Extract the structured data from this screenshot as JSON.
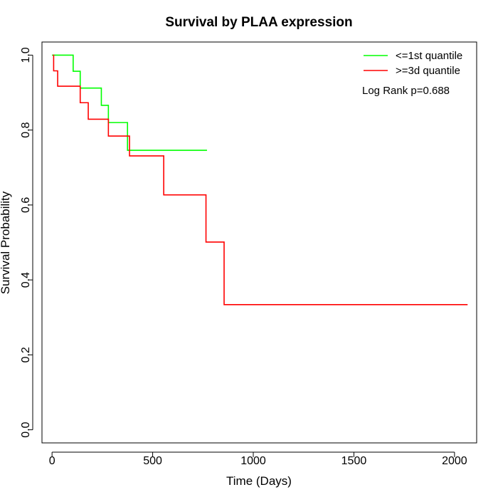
{
  "chart_data": {
    "type": "line",
    "title": "Survival by PLAA expression",
    "xlabel": "Time (Days)",
    "ylabel": "Survival Probability",
    "xlim": [
      -50,
      2110
    ],
    "ylim": [
      -0.035,
      1.035
    ],
    "xticks": [
      0,
      500,
      1000,
      1500,
      2000
    ],
    "xtick_labels": [
      "0",
      "500",
      "1000",
      "1500",
      "2000"
    ],
    "yticks": [
      0.0,
      0.2,
      0.4,
      0.6,
      0.8,
      1.0
    ],
    "ytick_labels": [
      "0.0",
      "0.2",
      "0.4",
      "0.6",
      "0.8",
      "1.0"
    ],
    "grid": false,
    "legend_position": "top-right",
    "annotation": "Log Rank p=0.688",
    "series": [
      {
        "name": "<=1st quantile",
        "color": "#00ff00",
        "step": true,
        "points": [
          [
            0,
            1.0
          ],
          [
            105,
            1.0
          ],
          [
            105,
            0.957
          ],
          [
            140,
            0.957
          ],
          [
            140,
            0.912
          ],
          [
            245,
            0.912
          ],
          [
            245,
            0.866
          ],
          [
            280,
            0.866
          ],
          [
            280,
            0.82
          ],
          [
            375,
            0.82
          ],
          [
            375,
            0.746
          ],
          [
            770,
            0.746
          ]
        ]
      },
      {
        "name": ">=3d quantile",
        "color": "#ff0000",
        "step": true,
        "points": [
          [
            5,
            1.0
          ],
          [
            8,
            1.0
          ],
          [
            8,
            0.958
          ],
          [
            28,
            0.958
          ],
          [
            28,
            0.917
          ],
          [
            140,
            0.917
          ],
          [
            140,
            0.873
          ],
          [
            180,
            0.873
          ],
          [
            180,
            0.829
          ],
          [
            280,
            0.829
          ],
          [
            280,
            0.784
          ],
          [
            385,
            0.784
          ],
          [
            385,
            0.731
          ],
          [
            555,
            0.731
          ],
          [
            555,
            0.627
          ],
          [
            765,
            0.627
          ],
          [
            765,
            0.501
          ],
          [
            855,
            0.501
          ],
          [
            855,
            0.334
          ],
          [
            2065,
            0.334
          ]
        ]
      }
    ]
  }
}
